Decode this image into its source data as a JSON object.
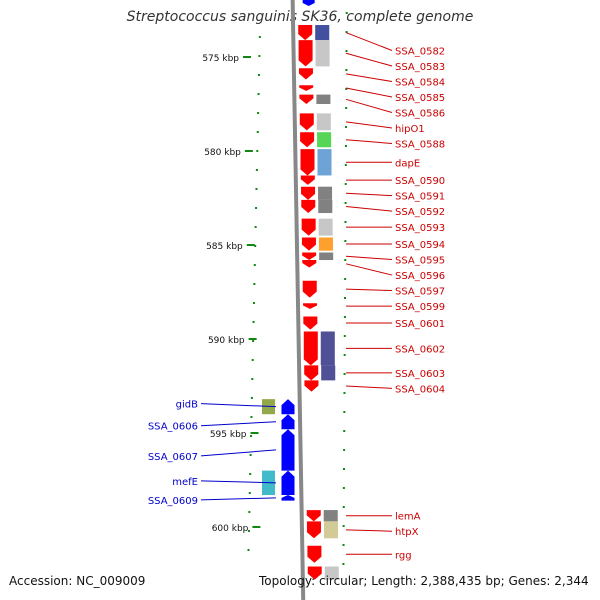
{
  "title": "Streptococcus sanguinis SK36, complete genome",
  "footer": {
    "accession": "Accession: NC_009009",
    "topology": "Topology: circular; Length: 2,388,435 bp; Genes: 2,344"
  },
  "colors": {
    "forward_gene": "#ff0000",
    "reverse_gene": "#0000ff",
    "forward_label": "#cc0000",
    "reverse_label": "#0000cc",
    "ruler_tick": "#118811",
    "backbone": "#888888"
  },
  "axis": {
    "unit": "kbp",
    "ticks": [
      {
        "kbp": 575,
        "label": "575 kbp"
      },
      {
        "kbp": 580,
        "label": "580 kbp"
      },
      {
        "kbp": 585,
        "label": "585 kbp"
      },
      {
        "kbp": 590,
        "label": "590 kbp"
      },
      {
        "kbp": 595,
        "label": "595 kbp"
      },
      {
        "kbp": 600,
        "label": "600 kbp"
      }
    ]
  },
  "forward_genes": [
    {
      "name": "SSA_0582",
      "start_kbp": 573.3,
      "end_kbp": 574.1,
      "cog_color": "#1a2a8a"
    },
    {
      "name": "SSA_0583",
      "start_kbp": 574.1,
      "end_kbp": 575.5,
      "cog_color": "#bbbbbb"
    },
    {
      "name": "SSA_0584",
      "start_kbp": 575.6,
      "end_kbp": 576.2,
      "cog_color": ""
    },
    {
      "name": "SSA_0585",
      "start_kbp": 576.5,
      "end_kbp": 576.8,
      "cog_color": ""
    },
    {
      "name": "SSA_0586",
      "start_kbp": 577.0,
      "end_kbp": 577.5,
      "cog_color": "#666666"
    },
    {
      "name": "hipO1",
      "start_kbp": 578.0,
      "end_kbp": 578.9,
      "cog_color": "#bbbbbb"
    },
    {
      "name": "SSA_0588",
      "start_kbp": 579.0,
      "end_kbp": 579.8,
      "cog_color": "#33cc33"
    },
    {
      "name": "dapE",
      "start_kbp": 579.9,
      "end_kbp": 581.3,
      "cog_color": "#4f8fcc"
    },
    {
      "name": "SSA_0590",
      "start_kbp": 581.3,
      "end_kbp": 581.8,
      "cog_color": ""
    },
    {
      "name": "SSA_0591",
      "start_kbp": 581.9,
      "end_kbp": 582.6,
      "cog_color": "#666666"
    },
    {
      "name": "SSA_0592",
      "start_kbp": 582.6,
      "end_kbp": 583.3,
      "cog_color": "#666666"
    },
    {
      "name": "SSA_0593",
      "start_kbp": 583.6,
      "end_kbp": 584.5,
      "cog_color": "#bbbbbb"
    },
    {
      "name": "SSA_0594",
      "start_kbp": 584.6,
      "end_kbp": 585.3,
      "cog_color": "#ff8c00"
    },
    {
      "name": "SSA_0595",
      "start_kbp": 585.4,
      "end_kbp": 585.8,
      "cog_color": "#666666"
    },
    {
      "name": "SSA_0596",
      "start_kbp": 585.8,
      "end_kbp": 586.2,
      "cog_color": ""
    },
    {
      "name": "SSA_0597",
      "start_kbp": 586.9,
      "end_kbp": 587.8,
      "cog_color": ""
    },
    {
      "name": "SSA_0599",
      "start_kbp": 588.1,
      "end_kbp": 588.4,
      "cog_color": ""
    },
    {
      "name": "SSA_0601",
      "start_kbp": 588.8,
      "end_kbp": 589.5,
      "cog_color": ""
    },
    {
      "name": "SSA_0602",
      "start_kbp": 589.6,
      "end_kbp": 591.4,
      "cog_color": "#2a2a80"
    },
    {
      "name": "SSA_0603",
      "start_kbp": 591.4,
      "end_kbp": 592.2,
      "cog_color": "#2a2a80"
    },
    {
      "name": "SSA_0604",
      "start_kbp": 592.2,
      "end_kbp": 592.8,
      "cog_color": ""
    },
    {
      "name": "lemA",
      "start_kbp": 599.1,
      "end_kbp": 599.7,
      "cog_color": "#666666"
    },
    {
      "name": "htpX",
      "start_kbp": 599.7,
      "end_kbp": 600.6,
      "cog_color": "#c8c080"
    },
    {
      "name": "rgg",
      "start_kbp": 601.0,
      "end_kbp": 601.9,
      "cog_color": ""
    },
    {
      "name": "",
      "start_kbp": 602.1,
      "end_kbp": 602.8,
      "cog_color": "#bbbbbb"
    }
  ],
  "reverse_genes": [
    {
      "name": "gidB",
      "start_kbp": 593.2,
      "end_kbp": 594.0,
      "cog_color": "#7f9a2a"
    },
    {
      "name": "SSA_0606",
      "start_kbp": 594.0,
      "end_kbp": 594.8,
      "cog_color": ""
    },
    {
      "name": "SSA_0607",
      "start_kbp": 594.8,
      "end_kbp": 597.0,
      "cog_color": ""
    },
    {
      "name": "mefE",
      "start_kbp": 597.0,
      "end_kbp": 598.3,
      "cog_color": "#20b0c0"
    },
    {
      "name": "SSA_0609",
      "start_kbp": 598.3,
      "end_kbp": 598.6,
      "cog_color": ""
    }
  ],
  "partial_gene_top": {
    "name": "",
    "cog_color": "#0000ff"
  }
}
